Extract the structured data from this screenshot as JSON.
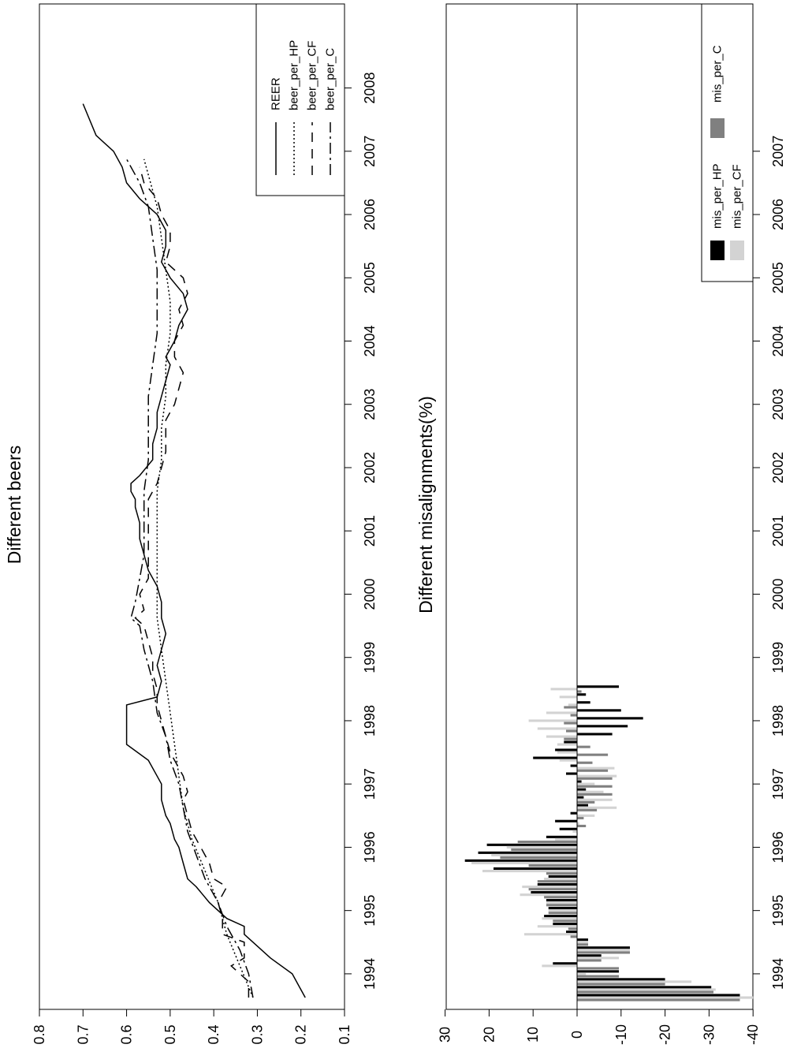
{
  "chart_data": [
    {
      "type": "line",
      "title": "Different beers",
      "x_ticks": [
        "1994",
        "1995",
        "1996",
        "1997",
        "1998",
        "1999",
        "2000",
        "2001",
        "2002",
        "2003",
        "2004",
        "2005",
        "2006",
        "2007",
        "2008"
      ],
      "x_tick_quarter_index": [
        3,
        11,
        19,
        27,
        35,
        43,
        51,
        59,
        67,
        75,
        83,
        91,
        99,
        107,
        115
      ],
      "y_ticks": [
        0.8,
        0.7,
        0.6,
        0.5,
        0.4,
        0.3,
        0.2,
        0.1
      ],
      "ylim": [
        0.1,
        0.8
      ],
      "legend_position": "top-right",
      "series": [
        {
          "name": "REER",
          "style": "solid",
          "points": [
            [
              0,
              0.19
            ],
            [
              3,
              0.22
            ],
            [
              5,
              0.27
            ],
            [
              7,
              0.31
            ],
            [
              8,
              0.33
            ],
            [
              9,
              0.33
            ],
            [
              10,
              0.37
            ],
            [
              12,
              0.41
            ],
            [
              14,
              0.44
            ],
            [
              15,
              0.46
            ],
            [
              17,
              0.47
            ],
            [
              19,
              0.48
            ],
            [
              20,
              0.49
            ],
            [
              22,
              0.5
            ],
            [
              23,
              0.51
            ],
            [
              25,
              0.52
            ],
            [
              27,
              0.52
            ],
            [
              28,
              0.53
            ],
            [
              30,
              0.55
            ],
            [
              32,
              0.6
            ],
            [
              33,
              0.6
            ],
            [
              35,
              0.6
            ],
            [
              37,
              0.6
            ],
            [
              38,
              0.53
            ],
            [
              40,
              0.52
            ],
            [
              42,
              0.53
            ],
            [
              44,
              0.52
            ],
            [
              46,
              0.51
            ],
            [
              48,
              0.52
            ],
            [
              50,
              0.52
            ],
            [
              52,
              0.53
            ],
            [
              54,
              0.55
            ],
            [
              56,
              0.56
            ],
            [
              58,
              0.57
            ],
            [
              60,
              0.57
            ],
            [
              62,
              0.58
            ],
            [
              63,
              0.58
            ],
            [
              64,
              0.59
            ],
            [
              65,
              0.59
            ],
            [
              66,
              0.57
            ],
            [
              68,
              0.54
            ],
            [
              70,
              0.54
            ],
            [
              72,
              0.53
            ],
            [
              74,
              0.53
            ],
            [
              76,
              0.52
            ],
            [
              78,
              0.51
            ],
            [
              80,
              0.5
            ],
            [
              81,
              0.51
            ],
            [
              83,
              0.49
            ],
            [
              85,
              0.48
            ],
            [
              87,
              0.46
            ],
            [
              89,
              0.47
            ],
            [
              91,
              0.5
            ],
            [
              93,
              0.52
            ],
            [
              95,
              0.51
            ],
            [
              97,
              0.51
            ],
            [
              99,
              0.53
            ],
            [
              101,
              0.57
            ],
            [
              103,
              0.6
            ],
            [
              105,
              0.61
            ],
            [
              107,
              0.63
            ],
            [
              109,
              0.67
            ],
            [
              113,
              0.7
            ]
          ]
        },
        {
          "name": "beer_per_HP",
          "style": "dotted",
          "points": [
            [
              0,
              0.31
            ],
            [
              4,
              0.34
            ],
            [
              8,
              0.37
            ],
            [
              12,
              0.39
            ],
            [
              16,
              0.42
            ],
            [
              20,
              0.45
            ],
            [
              24,
              0.47
            ],
            [
              28,
              0.48
            ],
            [
              32,
              0.49
            ],
            [
              36,
              0.5
            ],
            [
              40,
              0.51
            ],
            [
              44,
              0.52
            ],
            [
              48,
              0.53
            ],
            [
              52,
              0.53
            ],
            [
              56,
              0.53
            ],
            [
              60,
              0.53
            ],
            [
              64,
              0.53
            ],
            [
              68,
              0.52
            ],
            [
              72,
              0.52
            ],
            [
              76,
              0.51
            ],
            [
              80,
              0.51
            ],
            [
              84,
              0.5
            ],
            [
              88,
              0.5
            ],
            [
              92,
              0.51
            ],
            [
              96,
              0.52
            ],
            [
              100,
              0.53
            ],
            [
              104,
              0.55
            ],
            [
              106,
              0.56
            ]
          ]
        },
        {
          "name": "beer_per_CF",
          "style": "dashed",
          "points": [
            [
              0,
              0.32
            ],
            [
              2,
              0.32
            ],
            [
              4,
              0.36
            ],
            [
              5,
              0.33
            ],
            [
              7,
              0.33
            ],
            [
              8,
              0.38
            ],
            [
              10,
              0.38
            ],
            [
              12,
              0.39
            ],
            [
              14,
              0.37
            ],
            [
              15,
              0.4
            ],
            [
              17,
              0.41
            ],
            [
              19,
              0.43
            ],
            [
              21,
              0.45
            ],
            [
              23,
              0.46
            ],
            [
              25,
              0.47
            ],
            [
              26,
              0.46
            ],
            [
              28,
              0.47
            ],
            [
              29,
              0.48
            ],
            [
              31,
              0.5
            ],
            [
              33,
              0.51
            ],
            [
              35,
              0.52
            ],
            [
              37,
              0.53
            ],
            [
              39,
              0.53
            ],
            [
              41,
              0.54
            ],
            [
              43,
              0.54
            ],
            [
              45,
              0.55
            ],
            [
              47,
              0.56
            ],
            [
              48,
              0.58
            ],
            [
              49,
              0.56
            ],
            [
              51,
              0.57
            ],
            [
              53,
              0.55
            ],
            [
              55,
              0.55
            ],
            [
              57,
              0.55
            ],
            [
              59,
              0.55
            ],
            [
              61,
              0.55
            ],
            [
              63,
              0.55
            ],
            [
              65,
              0.53
            ],
            [
              67,
              0.52
            ],
            [
              69,
              0.51
            ],
            [
              71,
              0.51
            ],
            [
              73,
              0.51
            ],
            [
              75,
              0.49
            ],
            [
              77,
              0.48
            ],
            [
              79,
              0.47
            ],
            [
              81,
              0.49
            ],
            [
              83,
              0.49
            ],
            [
              85,
              0.47
            ],
            [
              87,
              0.48
            ],
            [
              89,
              0.46
            ],
            [
              91,
              0.47
            ],
            [
              93,
              0.51
            ],
            [
              95,
              0.5
            ],
            [
              97,
              0.5
            ],
            [
              99,
              0.52
            ],
            [
              101,
              0.53
            ],
            [
              103,
              0.56
            ],
            [
              105,
              0.57
            ]
          ]
        },
        {
          "name": "beer_per_C",
          "style": "dashdot",
          "points": [
            [
              0,
              0.31
            ],
            [
              3,
              0.32
            ],
            [
              6,
              0.34
            ],
            [
              9,
              0.37
            ],
            [
              12,
              0.39
            ],
            [
              15,
              0.42
            ],
            [
              18,
              0.44
            ],
            [
              21,
              0.46
            ],
            [
              24,
              0.47
            ],
            [
              27,
              0.48
            ],
            [
              30,
              0.5
            ],
            [
              33,
              0.51
            ],
            [
              36,
              0.53
            ],
            [
              40,
              0.54
            ],
            [
              44,
              0.56
            ],
            [
              47,
              0.57
            ],
            [
              48,
              0.59
            ],
            [
              50,
              0.58
            ],
            [
              53,
              0.57
            ],
            [
              56,
              0.56
            ],
            [
              60,
              0.56
            ],
            [
              64,
              0.56
            ],
            [
              68,
              0.55
            ],
            [
              72,
              0.55
            ],
            [
              76,
              0.55
            ],
            [
              80,
              0.54
            ],
            [
              84,
              0.53
            ],
            [
              88,
              0.53
            ],
            [
              92,
              0.53
            ],
            [
              96,
              0.54
            ],
            [
              100,
              0.55
            ],
            [
              103,
              0.57
            ],
            [
              106,
              0.6
            ]
          ]
        }
      ]
    },
    {
      "type": "bar",
      "title": "Different misalignments(%)",
      "x_ticks": [
        "1994",
        "1995",
        "1996",
        "1997",
        "1998",
        "1999",
        "2000",
        "2001",
        "2002",
        "2003",
        "2004",
        "2005",
        "2006",
        "2007"
      ],
      "x_tick_quarter_index": [
        3,
        11,
        19,
        27,
        35,
        43,
        51,
        59,
        67,
        75,
        83,
        91,
        99,
        107
      ],
      "y_ticks": [
        30,
        20,
        10,
        0,
        -10,
        -20,
        -30,
        -40
      ],
      "ylim": [
        -40,
        30
      ],
      "legend_position": "top-right",
      "series": [
        {
          "name": "mis_per_HP",
          "color": "#000000",
          "values": [
            -37,
            -30.5,
            -20,
            -9.5,
            5.5,
            -5.5,
            -12,
            -2.5,
            2.5,
            5.5,
            7.5,
            6.5,
            7,
            10.5,
            9,
            6.5,
            19,
            25.5,
            22.5,
            20.5,
            7,
            4,
            5,
            1.5,
            -2.5,
            -1.5,
            -2,
            -1,
            2.5,
            1.5,
            10,
            5,
            3,
            -8,
            -11.5,
            -15,
            -10,
            -3,
            -2,
            -9.5
          ]
        },
        {
          "name": "mis_per_CF",
          "color": "#d3d3d3",
          "values": [
            -40,
            -31.5,
            -26,
            -2,
            8,
            -9.5,
            -12,
            -2.5,
            12,
            9,
            8,
            6.5,
            7,
            13,
            12.5,
            7.5,
            21.5,
            24,
            19.5,
            16,
            5,
            1,
            -0.5,
            -4,
            -9,
            -8,
            -6,
            -4,
            -9,
            -8.5,
            4,
            4.5,
            4.5,
            7,
            9,
            11,
            7,
            2,
            4,
            6
          ]
        },
        {
          "name": "mis_per_C",
          "color": "#808080",
          "values": [
            -37,
            -31,
            -20,
            -9.5,
            -9.5,
            -5.5,
            -12,
            -2.5,
            1.5,
            2,
            5.5,
            6.5,
            7,
            7.5,
            11,
            9,
            7,
            11,
            17.5,
            15,
            13.5,
            0,
            -2,
            -1.5,
            -4.5,
            -4,
            -8,
            -8,
            -8,
            -7,
            -3.5,
            -7,
            -3,
            3,
            2.5,
            3,
            1.5,
            3,
            0,
            -1
          ]
        }
      ]
    }
  ]
}
